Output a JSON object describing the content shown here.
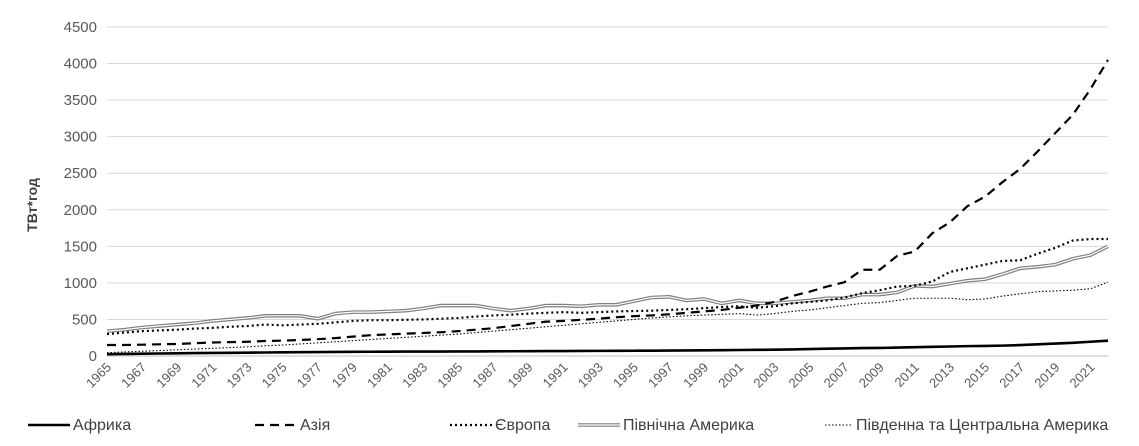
{
  "chart_data": {
    "type": "line",
    "title": "",
    "xlabel": "",
    "ylabel": "ТВт*год",
    "ylim": [
      0,
      4500
    ],
    "yticks": [
      0,
      500,
      1000,
      1500,
      2000,
      2500,
      3000,
      3500,
      4000,
      4500
    ],
    "grid": true,
    "legend_position": "bottom",
    "x": [
      1965,
      1966,
      1967,
      1968,
      1969,
      1970,
      1971,
      1972,
      1973,
      1974,
      1975,
      1976,
      1977,
      1978,
      1979,
      1980,
      1981,
      1982,
      1983,
      1984,
      1985,
      1986,
      1987,
      1988,
      1989,
      1990,
      1991,
      1992,
      1993,
      1994,
      1995,
      1996,
      1997,
      1998,
      1999,
      2000,
      2001,
      2002,
      2003,
      2004,
      2005,
      2006,
      2007,
      2008,
      2009,
      2010,
      2011,
      2012,
      2013,
      2014,
      2015,
      2016,
      2017,
      2018,
      2019,
      2020,
      2021,
      2022
    ],
    "x_tick_labels": [
      "1965",
      "1967",
      "1969",
      "1971",
      "1973",
      "1975",
      "1977",
      "1979",
      "1981",
      "1983",
      "1985",
      "1987",
      "1989",
      "1991",
      "1993",
      "1995",
      "1997",
      "1999",
      "2001",
      "2003",
      "2005",
      "2007",
      "2009",
      "2011",
      "2013",
      "2015",
      "2017",
      "2019",
      "2021"
    ],
    "series": [
      {
        "name": "Африка",
        "color": "#000000",
        "style": "solid-thick",
        "values": [
          25,
          28,
          31,
          34,
          37,
          40,
          42,
          44,
          46,
          48,
          50,
          52,
          54,
          56,
          57,
          58,
          59,
          60,
          60,
          61,
          62,
          63,
          64,
          65,
          66,
          67,
          68,
          69,
          70,
          71,
          72,
          73,
          74,
          76,
          78,
          80,
          82,
          84,
          86,
          90,
          95,
          100,
          104,
          108,
          110,
          115,
          120,
          125,
          130,
          135,
          138,
          142,
          150,
          160,
          170,
          180,
          195,
          210
        ]
      },
      {
        "name": "Азія",
        "color": "#000000",
        "style": "dashed",
        "values": [
          150,
          150,
          155,
          160,
          165,
          175,
          185,
          190,
          195,
          205,
          210,
          220,
          230,
          245,
          265,
          285,
          295,
          305,
          315,
          325,
          340,
          360,
          380,
          410,
          440,
          470,
          480,
          495,
          510,
          530,
          545,
          555,
          570,
          590,
          610,
          630,
          660,
          690,
          740,
          820,
          880,
          950,
          1010,
          1180,
          1180,
          1370,
          1430,
          1680,
          1830,
          2050,
          2180,
          2380,
          2560,
          2800,
          3050,
          3300,
          3650,
          4050
        ]
      },
      {
        "name": "Європа",
        "color": "#000000",
        "style": "dotted",
        "values": [
          300,
          320,
          340,
          350,
          360,
          375,
          385,
          400,
          410,
          430,
          420,
          430,
          440,
          460,
          480,
          490,
          490,
          495,
          500,
          510,
          520,
          540,
          555,
          565,
          580,
          590,
          600,
          590,
          600,
          610,
          615,
          620,
          630,
          640,
          655,
          670,
          680,
          660,
          680,
          720,
          740,
          760,
          800,
          860,
          900,
          950,
          960,
          1020,
          1150,
          1200,
          1250,
          1300,
          1310,
          1400,
          1480,
          1580,
          1600,
          1600
        ]
      },
      {
        "name": "Північна Америка",
        "color": "#808080",
        "style": "double",
        "values": [
          340,
          360,
          390,
          410,
          430,
          450,
          480,
          500,
          520,
          550,
          550,
          550,
          510,
          580,
          600,
          600,
          610,
          620,
          650,
          690,
          690,
          690,
          650,
          620,
          650,
          690,
          690,
          680,
          700,
          700,
          750,
          800,
          810,
          760,
          780,
          720,
          760,
          720,
          720,
          740,
          760,
          790,
          790,
          840,
          840,
          870,
          960,
          950,
          990,
          1030,
          1050,
          1120,
          1200,
          1220,
          1250,
          1330,
          1380,
          1500
        ]
      },
      {
        "name": "Південна та Центральна Америка",
        "color": "#000000",
        "style": "dotted-thin",
        "values": [
          45,
          55,
          65,
          75,
          85,
          95,
          105,
          115,
          125,
          140,
          150,
          165,
          180,
          195,
          210,
          225,
          240,
          255,
          270,
          285,
          300,
          320,
          340,
          360,
          380,
          400,
          420,
          440,
          460,
          480,
          500,
          520,
          535,
          550,
          560,
          570,
          580,
          560,
          580,
          610,
          630,
          660,
          690,
          720,
          730,
          760,
          790,
          790,
          790,
          770,
          780,
          820,
          850,
          880,
          890,
          900,
          920,
          1010
        ]
      }
    ]
  }
}
